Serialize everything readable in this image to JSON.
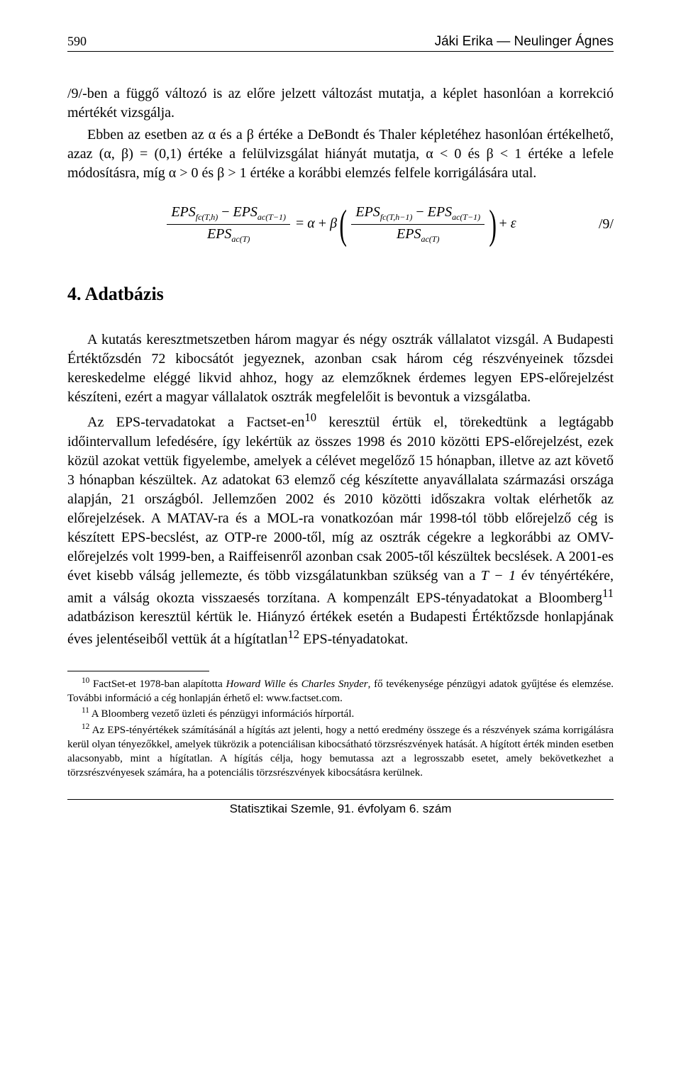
{
  "header": {
    "page_number": "590",
    "authors": "Jáki Erika — Neulinger Ágnes"
  },
  "body": {
    "p1": "/9/-ben a függő változó is az előre jelzett változást mutatja, a képlet hasonlóan a korrekció mértékét vizsgálja.",
    "p2": "Ebben az esetben az α és a β értéke a DeBondt és Thaler képletéhez hasonlóan értékelhető, azaz (α, β) = (0,1) értéke a felülvizsgálat hiányát mutatja, α < 0 és β < 1 értéke a lefele módosításra, míg α > 0 és β > 1 értéke a korábbi elemzés felfele korrigálására utal."
  },
  "equation": {
    "lhs_num_a": "EPS",
    "lhs_num_a_sub": "fc(T,h)",
    "lhs_num_b": "EPS",
    "lhs_num_b_sub": "ac(T−1)",
    "lhs_den": "EPS",
    "lhs_den_sub": "ac(T)",
    "alpha": "α",
    "beta": "β",
    "rhs_num_a": "EPS",
    "rhs_num_a_sub": "fc(T,h−1)",
    "rhs_num_b": "EPS",
    "rhs_num_b_sub": "ac(T−1)",
    "rhs_den": "EPS",
    "rhs_den_sub": "ac(T)",
    "eps": "ε",
    "eqnum": "/9/"
  },
  "section4": {
    "title": "4. Adatbázis",
    "p1": "A kutatás keresztmetszetben három magyar és négy osztrák vállalatot vizsgál. A Budapesti Értéktőzsdén 72 kibocsátót jegyeznek, azonban csak három cég részvényeinek tőzsdei kereskedelme eléggé likvid ahhoz, hogy az elemzőknek érdemes legyen EPS-előrejelzést készíteni, ezért a magyar vállalatok osztrák megfelelőit is bevontuk a vizsgálatba.",
    "p2_a": "Az EPS-tervadatokat a Factset-en",
    "p2_fn10": "10",
    "p2_b": " keresztül értük el, törekedtünk a legtágabb időintervallum lefedésére, így lekértük az összes 1998 és 2010 közötti EPS-előrejelzést, ezek közül azokat vettük figyelembe, amelyek a célévet megelőző 15 hónapban, illetve az azt követő 3 hónapban készültek. Az adatokat 63 elemző cég készítette anyavállalata származási országa alapján, 21 országból. Jellemzően 2002 és 2010 közötti időszakra voltak elérhetők az előrejelzések. A MATAV-ra és a MOL-ra vonatkozóan már 1998-tól több előrejelző cég is készített EPS-becslést, az OTP-re 2000-től, míg az osztrák cégekre a legkorábbi az OMV-előrejelzés volt 1999-ben, a Raiffeisenről azonban csak 2005-től készültek becslések. A 2001-es évet kisebb válság jellemezte, és több vizsgálatunkban szükség van a ",
    "p2_tminus1": "T − 1",
    "p2_c": " év tényértékére, amit a válság okozta visszaesés torzítana. A kompenzált EPS-tényadatokat a Bloomberg",
    "p2_fn11": "11",
    "p2_d": " adatbázison keresztül kértük le. Hiányzó értékek esetén a Budapesti Értéktőzsde honlapjának éves jelentéseiből vettük át a hígítatlan",
    "p2_fn12": "12",
    "p2_e": " EPS-tényadatokat."
  },
  "footnotes": {
    "f10_a": "FactSet-et 1978-ban alapította ",
    "f10_i1": "Howard Wille",
    "f10_b": " és ",
    "f10_i2": "Charles Snyder",
    "f10_c": ", fő tevékenysége pénzügyi adatok gyűjtése és elemzése. További információ a cég honlapján érhető el: www.factset.com.",
    "f11": "A Bloomberg vezető üzleti és pénzügyi információs hírportál.",
    "f12": "Az EPS-tényértékek számításánál a hígítás azt jelenti, hogy a nettó eredmény összege és a részvények száma korrigálásra kerül olyan tényezőkkel, amelyek tükrözik a potenciálisan kibocsátható törzsrészvények hatását. A hígított érték minden esetben alacsonyabb, mint a hígítatlan. A hígítás célja, hogy bemutassa azt a legrosszabb esetet, amely bekövetkezhet a törzsrészvényesek számára, ha a potenciális törzsrészvények kibocsátásra kerülnek.",
    "num10": "10",
    "num11": "11",
    "num12": "12"
  },
  "footer": {
    "text": "Statisztikai Szemle, 91. évfolyam 6. szám"
  }
}
